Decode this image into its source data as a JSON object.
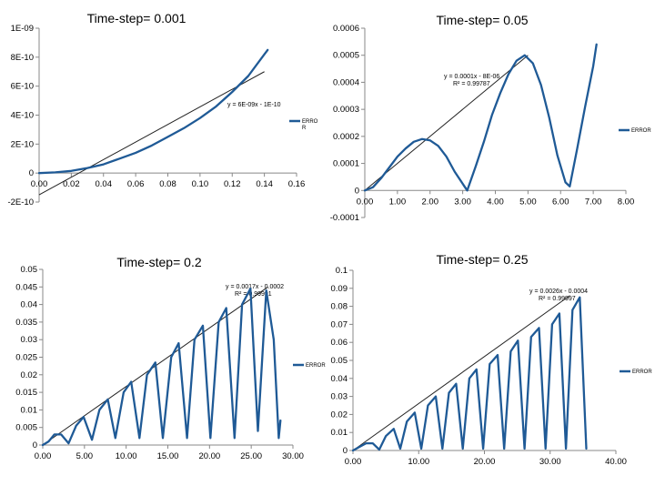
{
  "chart_data": [
    {
      "type": "line",
      "title": "Time-step= 0.001",
      "xlim": [
        0,
        0.16
      ],
      "ylim": [
        -2e-10,
        1e-09
      ],
      "x_ticks": [
        "0.00",
        "0.02",
        "0.04",
        "0.06",
        "0.08",
        "0.10",
        "0.12",
        "0.14",
        "0.16"
      ],
      "y_ticks": [
        "-2E-10",
        "0",
        "2E-10",
        "4E-10",
        "6E-10",
        "8E-10",
        "1E-09"
      ],
      "legend": {
        "label": "ERRO\nR",
        "position": "right"
      },
      "trendline": {
        "equation": "y = 6E-09x - 1E-10",
        "x": [
          0,
          0.14
        ],
        "y": [
          -1.5e-10,
          7e-10
        ]
      },
      "series": [
        {
          "name": "ERROR",
          "color": "#1f5a96",
          "x": [
            0,
            0.01,
            0.02,
            0.03,
            0.04,
            0.05,
            0.06,
            0.07,
            0.08,
            0.09,
            0.1,
            0.11,
            0.12,
            0.13,
            0.14,
            0.142
          ],
          "y": [
            0,
            5e-12,
            1.5e-11,
            3.5e-11,
            6e-11,
            1e-10,
            1.4e-10,
            1.9e-10,
            2.5e-10,
            3.1e-10,
            3.8e-10,
            4.6e-10,
            5.6e-10,
            6.7e-10,
            8.2e-10,
            8.5e-10
          ]
        }
      ]
    },
    {
      "type": "line",
      "title": "Time-step= 0.05",
      "xlim": [
        0,
        8
      ],
      "ylim": [
        -0.0001,
        0.0006
      ],
      "x_ticks": [
        "0.00",
        "1.00",
        "2.00",
        "3.00",
        "4.00",
        "5.00",
        "6.00",
        "7.00",
        "8.00"
      ],
      "y_ticks": [
        "-0.0001",
        "0",
        "0.0001",
        "0.0002",
        "0.0003",
        "0.0004",
        "0.0005",
        "0.0006"
      ],
      "legend": {
        "label": "ERROR",
        "position": "right"
      },
      "trendline": {
        "equation": "y = 0.0001x - 8E-06",
        "r2": "R² = 0.99787",
        "x": [
          0,
          5
        ],
        "y": [
          0,
          0.0005
        ]
      },
      "series": [
        {
          "name": "ERROR",
          "color": "#1f5a96",
          "x": [
            0,
            0.25,
            0.5,
            0.75,
            1.0,
            1.25,
            1.5,
            1.75,
            2.0,
            2.25,
            2.5,
            2.75,
            3.0,
            3.14,
            3.4,
            3.65,
            3.9,
            4.15,
            4.4,
            4.65,
            4.9,
            5.15,
            5.4,
            5.65,
            5.9,
            6.15,
            6.28,
            6.5,
            6.75,
            7.0,
            7.1
          ],
          "y": [
            0,
            1.2e-05,
            4.5e-05,
            8.5e-05,
            0.000125,
            0.000155,
            0.00018,
            0.00019,
            0.000185,
            0.000165,
            0.000125,
            7e-05,
            2.5e-05,
            0,
            9e-05,
            0.00018,
            0.00028,
            0.00036,
            0.00043,
            0.00048,
            0.0005,
            0.00047,
            0.00039,
            0.00027,
            0.00013,
            3e-05,
            1.5e-05,
            0.00015,
            0.00031,
            0.00046,
            0.00054
          ]
        }
      ]
    },
    {
      "type": "line",
      "title": "Time-step= 0.2",
      "xlim": [
        0,
        30
      ],
      "ylim": [
        0,
        0.05
      ],
      "x_ticks": [
        "0.00",
        "5.00",
        "10.00",
        "15.00",
        "20.00",
        "25.00",
        "30.00"
      ],
      "y_ticks": [
        "0",
        "0.005",
        "0.01",
        "0.015",
        "0.02",
        "0.025",
        "0.03",
        "0.035",
        "0.04",
        "0.045",
        "0.05"
      ],
      "legend": {
        "label": "ERROR",
        "position": "right"
      },
      "trendline": {
        "equation": "y = 0.0017x - 0.0002",
        "r2": "R² = 0.99991",
        "x": [
          0,
          27
        ],
        "y": [
          0,
          0.045
        ]
      },
      "series": [
        {
          "name": "ERROR",
          "color": "#1f5a96",
          "x": [
            0,
            0.7,
            1.4,
            2.2,
            3.1,
            4.0,
            4.9,
            5.9,
            6.8,
            7.8,
            8.7,
            9.7,
            10.6,
            11.6,
            12.5,
            13.5,
            14.4,
            15.4,
            16.3,
            17.3,
            18.2,
            19.2,
            20.1,
            21.1,
            22.0,
            23.0,
            23.9,
            24.9,
            25.8,
            26.8,
            27.7,
            28.3,
            28.5
          ],
          "y": [
            0,
            0.001,
            0.003,
            0.003,
            0.0005,
            0.0055,
            0.008,
            0.0015,
            0.01,
            0.013,
            0.002,
            0.015,
            0.018,
            0.002,
            0.02,
            0.0235,
            0.002,
            0.025,
            0.029,
            0.002,
            0.03,
            0.034,
            0.002,
            0.035,
            0.039,
            0.002,
            0.04,
            0.0445,
            0.004,
            0.044,
            0.03,
            0.002,
            0.007
          ]
        }
      ]
    },
    {
      "type": "line",
      "title": "Time-step= 0.25",
      "xlim": [
        0,
        40
      ],
      "ylim": [
        0,
        0.1
      ],
      "x_ticks": [
        "0.00",
        "10.00",
        "20.00",
        "30.00",
        "40.00"
      ],
      "y_ticks": [
        "0",
        "0.01",
        "0.02",
        "0.03",
        "0.04",
        "0.05",
        "0.06",
        "0.07",
        "0.08",
        "0.09",
        "0.1"
      ],
      "legend": {
        "label": "ERROR",
        "position": "right"
      },
      "trendline": {
        "equation": "y = 0.0026x - 0.0004",
        "r2": "R² = 0.99997",
        "x": [
          0,
          33
        ],
        "y": [
          0,
          0.086
        ]
      },
      "series": [
        {
          "name": "ERROR",
          "color": "#1f5a96",
          "x": [
            0,
            1,
            2,
            3,
            4,
            5,
            6.2,
            7.2,
            8.2,
            9.4,
            10.4,
            11.4,
            12.6,
            13.6,
            14.6,
            15.7,
            16.7,
            17.7,
            18.8,
            19.8,
            20.8,
            22.0,
            23.0,
            24.0,
            25.1,
            26.1,
            27.1,
            28.3,
            29.3,
            30.3,
            31.4,
            32.4,
            33.4,
            34.5,
            35.5
          ],
          "y": [
            0,
            0.002,
            0.004,
            0.004,
            0.0005,
            0.008,
            0.012,
            0.001,
            0.016,
            0.021,
            0.001,
            0.025,
            0.03,
            0.001,
            0.032,
            0.037,
            0.001,
            0.04,
            0.045,
            0.001,
            0.048,
            0.053,
            0.001,
            0.055,
            0.061,
            0.001,
            0.063,
            0.068,
            0.001,
            0.07,
            0.076,
            0.001,
            0.078,
            0.085,
            0.001
          ]
        }
      ]
    }
  ]
}
